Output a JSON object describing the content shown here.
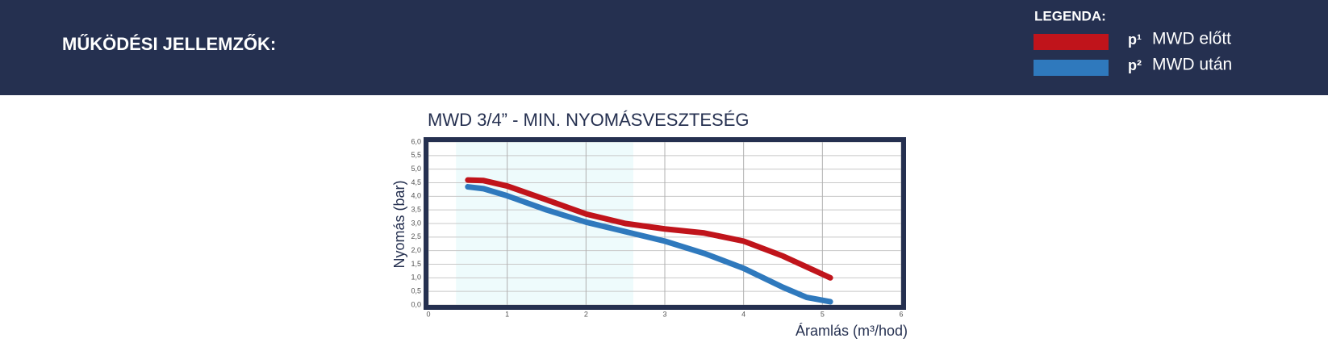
{
  "header": {
    "title": "MŰKÖDÉSI JELLEMZŐK:",
    "legend_title": "LEGENDA:"
  },
  "chart_data": {
    "type": "line",
    "title": "MWD 3/4” - MIN. NYOMÁSVESZTESÉG",
    "x_label": "Áramlás (m³/hod)",
    "y_label": "Nyomás (bar)",
    "series": [
      {
        "name": "MWD előtt",
        "symbol": "p¹",
        "color": "#c0141b",
        "x": [
          0.5,
          0.7,
          1.0,
          1.5,
          2.0,
          2.5,
          3.0,
          3.5,
          4.0,
          4.5,
          5.1
        ],
        "values": [
          4.6,
          4.58,
          4.38,
          3.87,
          3.35,
          3.0,
          2.8,
          2.65,
          2.35,
          1.8,
          1.0
        ]
      },
      {
        "name": "MWD után",
        "symbol": "p²",
        "color": "#2f79bd",
        "x": [
          0.5,
          0.7,
          1.0,
          1.5,
          2.0,
          2.5,
          3.0,
          3.5,
          4.0,
          4.5,
          4.8,
          5.1
        ],
        "values": [
          4.35,
          4.28,
          4.02,
          3.5,
          3.05,
          2.7,
          2.35,
          1.9,
          1.35,
          0.65,
          0.28,
          0.12
        ]
      }
    ],
    "xlim": [
      0,
      6
    ],
    "xticks": [
      0,
      1,
      2,
      3,
      4,
      5,
      6
    ],
    "ylim": [
      0,
      6
    ],
    "yticks": [
      {
        "value": 0,
        "label": "0,0"
      },
      {
        "value": 0.5,
        "label": "0,5"
      },
      {
        "value": 1,
        "label": "1,0"
      },
      {
        "value": 1.5,
        "label": "1,5"
      },
      {
        "value": 2,
        "label": "2,0"
      },
      {
        "value": 2.5,
        "label": "2,5"
      },
      {
        "value": 3,
        "label": "3,0"
      },
      {
        "value": 3.5,
        "label": "3,5"
      },
      {
        "value": 4,
        "label": "4,0"
      },
      {
        "value": 4.5,
        "label": "4,5"
      },
      {
        "value": 5,
        "label": "5,0"
      },
      {
        "value": 5.5,
        "label": "5,5"
      },
      {
        "value": 6,
        "label": "6,0"
      }
    ],
    "grid": true,
    "highlight_xlim": [
      0.35,
      2.6
    ]
  }
}
